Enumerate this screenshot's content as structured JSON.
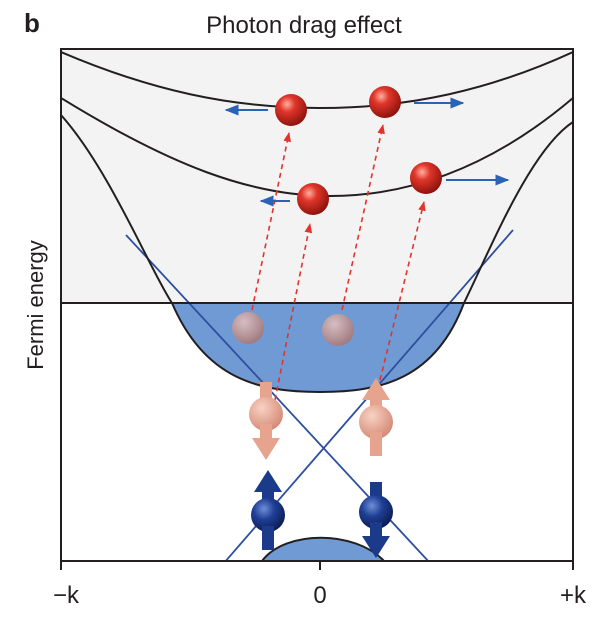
{
  "panel_label": "b",
  "title": "Photon drag effect",
  "y_axis_label": "Fermi energy",
  "x_ticks": [
    "−k",
    "0",
    "+k"
  ],
  "colors": {
    "band_fill_light": "#f3f3f3",
    "band_fill_blue": "#6f9ad4",
    "dirac_lines": "#2e4f9e",
    "excitation_arrows": "#e2332c",
    "drift_arrows": "#2a62b5",
    "electron_hot": "#d12a20",
    "electron_depleted": "#c98e8a",
    "spin_up_down_light": "#e8a08a",
    "spin_dark": "#1c3a8a",
    "outline": "#231f20"
  }
}
